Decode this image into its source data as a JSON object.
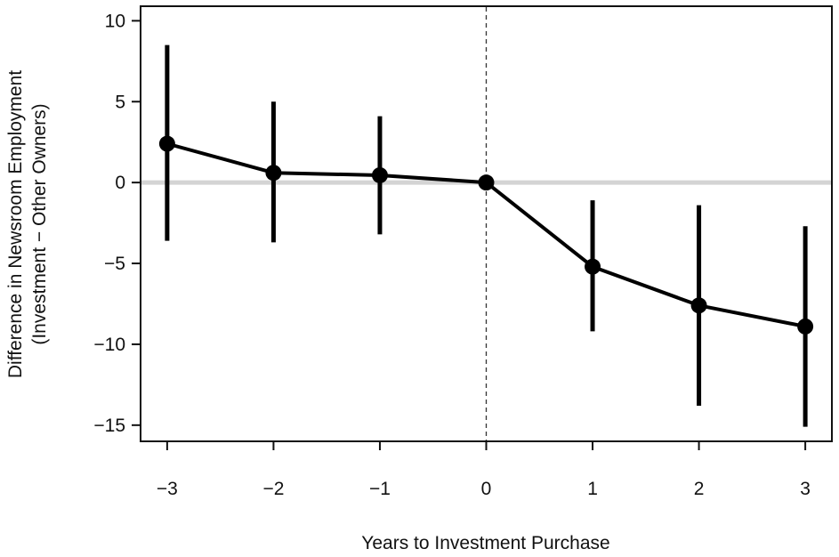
{
  "chart_data": {
    "type": "line",
    "title": "",
    "xlabel": "Years to Investment Purchase",
    "ylabel_lines": [
      "Difference in Newsroom Employment",
      "(Investment − Other Owners)"
    ],
    "x_ticks": [
      "−3",
      "−2",
      "−1",
      "0",
      "1",
      "2",
      "3"
    ],
    "y_ticks": [
      "10",
      "5",
      "0",
      "−5",
      "−10",
      "−15"
    ],
    "xlim": [
      -3.25,
      3.25
    ],
    "ylim": [
      -16,
      10.9
    ],
    "grid": false,
    "series": [
      {
        "x": [
          -3,
          -2,
          -1,
          0,
          1,
          2,
          3
        ],
        "y": [
          2.4,
          0.6,
          0.45,
          0,
          -5.2,
          -7.6,
          -8.9
        ],
        "ci_low": [
          -3.6,
          -3.7,
          -3.2,
          0,
          -9.2,
          -13.8,
          -15.1
        ],
        "ci_high": [
          8.5,
          5.0,
          4.1,
          0,
          -1.1,
          -1.4,
          -2.7
        ]
      }
    ],
    "reference_line_y": 0,
    "reference_line_x": 0,
    "colors": {
      "series": "#000000",
      "zero_line": "#d4d4d4",
      "frame": "#111111"
    }
  }
}
